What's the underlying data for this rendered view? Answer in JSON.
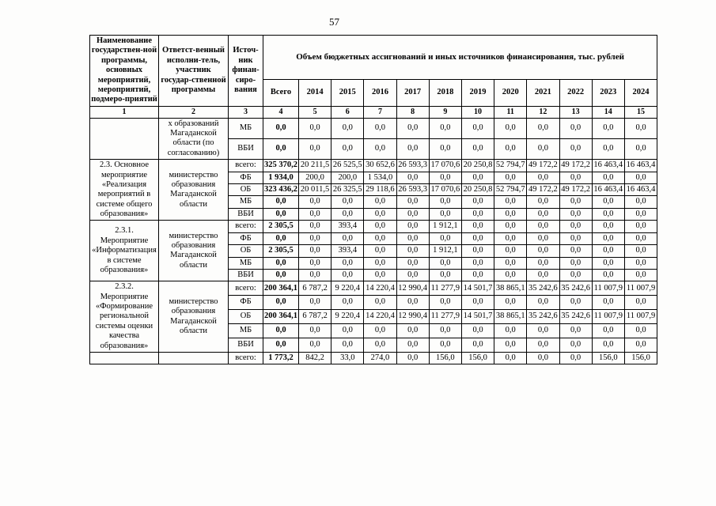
{
  "page_number": "57",
  "table": {
    "header": {
      "col_program": "Наименование государствен-ной программы, основных мероприятий, мероприятий, подмеро-приятий",
      "col_executor": "Ответст-венный исполни-тель, участник государ-ственной программы",
      "col_source": "Источ-ник финан-сиро-вания",
      "volume_title": "Объем бюджетных ассигнований и иных источников финансирования, тыс. рублей",
      "col_total": "Всего",
      "years": [
        "2014",
        "2015",
        "2016",
        "2017",
        "2018",
        "2019",
        "2020",
        "2021",
        "2022",
        "2023",
        "2024"
      ],
      "col_numbers": [
        "1",
        "2",
        "3",
        "4",
        "5",
        "6",
        "7",
        "8",
        "9",
        "10",
        "11",
        "12",
        "13",
        "14",
        "15"
      ]
    },
    "groups": [
      {
        "name": "",
        "executor": "х образований Магаданской области (по согласованию)",
        "rows": [
          {
            "source": "МБ",
            "values": [
              "0,0",
              "0,0",
              "0,0",
              "0,0",
              "0,0",
              "0,0",
              "0,0",
              "0,0",
              "0,0",
              "0,0",
              "0,0",
              "0,0"
            ]
          },
          {
            "source": "ВБИ",
            "values": [
              "0,0",
              "0,0",
              "0,0",
              "0,0",
              "0,0",
              "0,0",
              "0,0",
              "0,0",
              "0,0",
              "0,0",
              "0,0",
              "0,0"
            ]
          }
        ]
      },
      {
        "name": "2.3. Основное мероприятие «Реализация мероприятий в системе общего образования»",
        "executor": "министерство образования Магаданской области",
        "rows": [
          {
            "source": "всего:",
            "values": [
              "325 370,2",
              "20 211,5",
              "26 525,5",
              "30 652,6",
              "26 593,3",
              "17 070,6",
              "20 250,8",
              "52 794,7",
              "49 172,2",
              "49 172,2",
              "16 463,4",
              "16 463,4"
            ]
          },
          {
            "source": "ФБ",
            "values": [
              "1 934,0",
              "200,0",
              "200,0",
              "1 534,0",
              "0,0",
              "0,0",
              "0,0",
              "0,0",
              "0,0",
              "0,0",
              "0,0",
              "0,0"
            ]
          },
          {
            "source": "ОБ",
            "values": [
              "323 436,2",
              "20 011,5",
              "26 325,5",
              "29 118,6",
              "26 593,3",
              "17 070,6",
              "20 250,8",
              "52 794,7",
              "49 172,2",
              "49 172,2",
              "16 463,4",
              "16 463,4"
            ]
          },
          {
            "source": "МБ",
            "values": [
              "0,0",
              "0,0",
              "0,0",
              "0,0",
              "0,0",
              "0,0",
              "0,0",
              "0,0",
              "0,0",
              "0,0",
              "0,0",
              "0,0"
            ]
          },
          {
            "source": "ВБИ",
            "values": [
              "0,0",
              "0,0",
              "0,0",
              "0,0",
              "0,0",
              "0,0",
              "0,0",
              "0,0",
              "0,0",
              "0,0",
              "0,0",
              "0,0"
            ]
          }
        ]
      },
      {
        "name": "2.3.1. Мероприятие «Информатиза­ция в системе образования»",
        "executor": "министерство образования Магаданской области",
        "rows": [
          {
            "source": "всего:",
            "values": [
              "2 305,5",
              "0,0",
              "393,4",
              "0,0",
              "0,0",
              "1 912,1",
              "0,0",
              "0,0",
              "0,0",
              "0,0",
              "0,0",
              "0,0"
            ]
          },
          {
            "source": "ФБ",
            "values": [
              "0,0",
              "0,0",
              "0,0",
              "0,0",
              "0,0",
              "0,0",
              "0,0",
              "0,0",
              "0,0",
              "0,0",
              "0,0",
              "0,0"
            ]
          },
          {
            "source": "ОБ",
            "values": [
              "2 305,5",
              "0,0",
              "393,4",
              "0,0",
              "0,0",
              "1 912,1",
              "0,0",
              "0,0",
              "0,0",
              "0,0",
              "0,0",
              "0,0"
            ]
          },
          {
            "source": "МБ",
            "values": [
              "0,0",
              "0,0",
              "0,0",
              "0,0",
              "0,0",
              "0,0",
              "0,0",
              "0,0",
              "0,0",
              "0,0",
              "0,0",
              "0,0"
            ]
          },
          {
            "source": "ВБИ",
            "values": [
              "0,0",
              "0,0",
              "0,0",
              "0,0",
              "0,0",
              "0,0",
              "0,0",
              "0,0",
              "0,0",
              "0,0",
              "0,0",
              "0,0"
            ]
          }
        ]
      },
      {
        "name": "2.3.2. Мероприятие «Формировани­е региональной системы оценки качества образования»",
        "executor": "министерство образования Магаданской области",
        "rows": [
          {
            "source": "всего:",
            "values": [
              "200 364,1",
              "6 787,2",
              "9 220,4",
              "14 220,4",
              "12 990,4",
              "11 277,9",
              "14 501,7",
              "38 865,1",
              "35 242,6",
              "35 242,6",
              "11 007,9",
              "11 007,9"
            ]
          },
          {
            "source": "ФБ",
            "values": [
              "0,0",
              "0,0",
              "0,0",
              "0,0",
              "0,0",
              "0,0",
              "0,0",
              "0,0",
              "0,0",
              "0,0",
              "0,0",
              "0,0"
            ]
          },
          {
            "source": "ОБ",
            "values": [
              "200 364,1",
              "6 787,2",
              "9 220,4",
              "14 220,4",
              "12 990,4",
              "11 277,9",
              "14 501,7",
              "38 865,1",
              "35 242,6",
              "35 242,6",
              "11 007,9",
              "11 007,9"
            ]
          },
          {
            "source": "МБ",
            "values": [
              "0,0",
              "0,0",
              "0,0",
              "0,0",
              "0,0",
              "0,0",
              "0,0",
              "0,0",
              "0,0",
              "0,0",
              "0,0",
              "0,0"
            ]
          },
          {
            "source": "ВБИ",
            "values": [
              "0,0",
              "0,0",
              "0,0",
              "0,0",
              "0,0",
              "0,0",
              "0,0",
              "0,0",
              "0,0",
              "0,0",
              "0,0",
              "0,0"
            ]
          }
        ]
      },
      {
        "name": "",
        "executor": "",
        "rows": [
          {
            "source": "всего:",
            "values": [
              "1 773,2",
              "842,2",
              "33,0",
              "274,0",
              "0,0",
              "156,0",
              "156,0",
              "0,0",
              "0,0",
              "0,0",
              "156,0",
              "156,0"
            ]
          }
        ]
      }
    ]
  }
}
